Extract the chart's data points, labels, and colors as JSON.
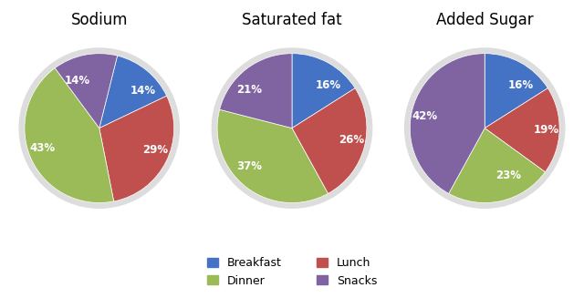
{
  "charts": [
    {
      "title": "Sodium",
      "values": [
        14,
        29,
        43,
        14
      ],
      "labels": [
        "14%",
        "29%",
        "43%",
        "14%"
      ],
      "startangle": 76
    },
    {
      "title": "Saturated fat",
      "values": [
        16,
        26,
        37,
        21
      ],
      "labels": [
        "16%",
        "26%",
        "37%",
        "21%"
      ],
      "startangle": 90
    },
    {
      "title": "Added Sugar",
      "values": [
        16,
        19,
        23,
        42
      ],
      "labels": [
        "16%",
        "19%",
        "23%",
        "42%"
      ],
      "startangle": 90
    }
  ],
  "colors": [
    "#4472C4",
    "#C0504D",
    "#9BBB59",
    "#8064A2"
  ],
  "legend_labels": [
    "Breakfast",
    "Lunch",
    "Dinner",
    "Snacks"
  ],
  "legend_colors": [
    "#4472C4",
    "#C0504D",
    "#9BBB59",
    "#8064A2"
  ],
  "background_color": "#FFFFFF",
  "title_fontsize": 12,
  "label_fontsize": 8.5,
  "shadow_color": "#DDDDDD"
}
